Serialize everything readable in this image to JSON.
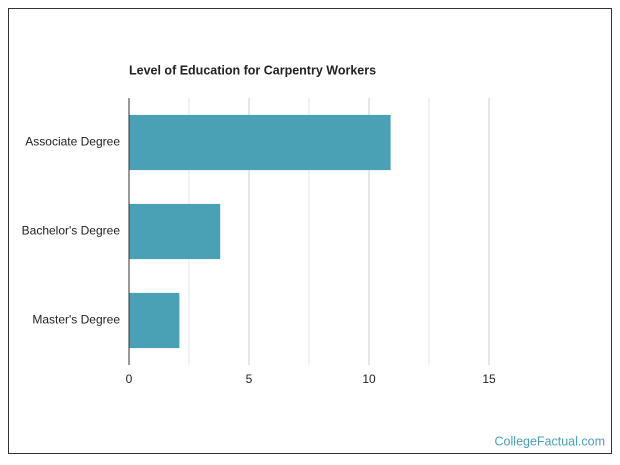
{
  "chart_data": {
    "type": "barh",
    "title": "Level of Education for Carpentry Workers",
    "categories": [
      "Associate Degree",
      "Bachelor's Degree",
      "Master's Degree"
    ],
    "values": [
      10.9,
      3.8,
      2.1
    ],
    "color": "#4aa0b5",
    "xlim": [
      0,
      15
    ],
    "xticks": [
      0,
      5,
      10,
      15
    ],
    "grid": true,
    "source": "CollegeFactual.com"
  }
}
